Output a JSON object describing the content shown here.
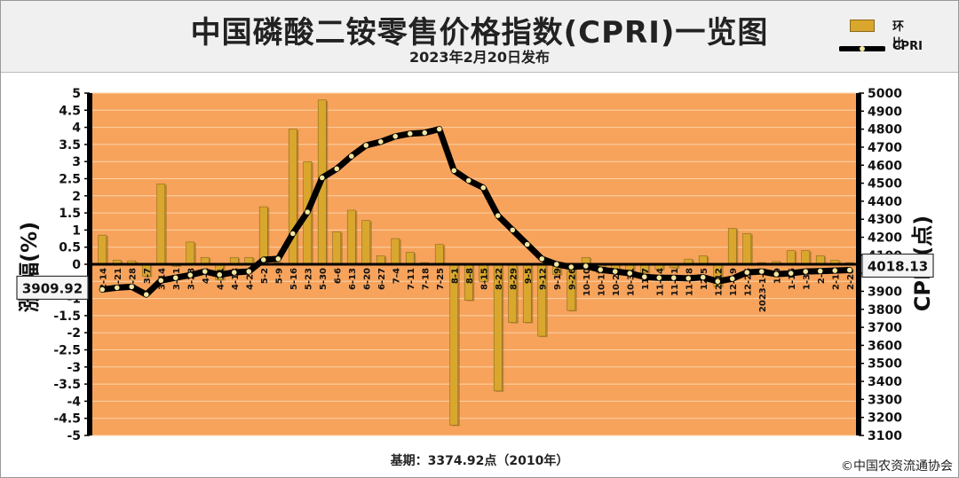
{
  "header": {
    "title": "中国磷酸二铵零售价格指数(CPRI)一览图",
    "subtitle": "2023年2月20日发布"
  },
  "legend": {
    "bar_label": "环比",
    "line_label": "CPRI"
  },
  "footer": {
    "base": "基期：3374.92点（2010年）",
    "copyright": "©中国农资流通协会"
  },
  "colors": {
    "bar": "#d9a62e",
    "bar_dark": "#8a6a1a",
    "line": "#000000",
    "grid_bg": "#f7a35c",
    "grid_line": "#fbd3a8"
  },
  "chart_data": {
    "type": "bar",
    "x": [
      "2-14",
      "2-21",
      "2-28",
      "3-7",
      "3-14",
      "3-21",
      "3-28",
      "4-4",
      "4-11",
      "4-18",
      "4-25",
      "5-2",
      "5-9",
      "5-16",
      "5-23",
      "5-30",
      "6-6",
      "6-13",
      "6-20",
      "6-27",
      "7-4",
      "7-11",
      "7-18",
      "7-25",
      "8-1",
      "8-8",
      "8-15",
      "8-22",
      "8-29",
      "9-5",
      "9-12",
      "9-19",
      "9-26",
      "10-10",
      "10-17",
      "10-24",
      "10-31",
      "11-7",
      "11-14",
      "11-21",
      "11-28",
      "12-5",
      "12-12",
      "12-19",
      "12-26",
      "2023-1-2",
      "1-9",
      "1-16",
      "1-30",
      "2-6",
      "2-13",
      "2-20"
    ],
    "series": [
      {
        "name": "环比",
        "axis": "left",
        "values": [
          0.85,
          0.12,
          0.1,
          -0.35,
          2.35,
          -0.05,
          0.65,
          0.2,
          -0.45,
          0.2,
          0.2,
          1.68,
          0.05,
          3.95,
          3.0,
          4.8,
          0.95,
          1.58,
          1.28,
          0.25,
          0.75,
          0.35,
          0.05,
          0.58,
          -4.7,
          -1.05,
          -0.5,
          -3.7,
          -1.7,
          -1.7,
          -2.1,
          -0.3,
          -1.35,
          0.2,
          -0.25,
          -0.15,
          -0.3,
          -0.25,
          -0.15,
          -0.1,
          0.15,
          0.25,
          -0.65,
          1.05,
          0.9,
          0.05,
          0.08,
          0.4,
          0.4,
          0.25,
          0.12,
          0.05
        ]
      },
      {
        "name": "CPRI",
        "axis": "right",
        "values": [
          3910,
          3920,
          3925,
          3882,
          3960,
          3975,
          3990,
          4010,
          3992,
          4005,
          4010,
          4075,
          4080,
          4220,
          4340,
          4530,
          4580,
          4650,
          4710,
          4730,
          4760,
          4775,
          4780,
          4800,
          4570,
          4515,
          4475,
          4320,
          4240,
          4160,
          4080,
          4050,
          4035,
          4040,
          4020,
          4010,
          4000,
          3980,
          3975,
          3975,
          3972,
          3978,
          3955,
          3970,
          4005,
          4010,
          3995,
          4000,
          4010,
          4012,
          4015,
          4018
        ]
      }
    ],
    "ylabel_left": "涨 幅(%)",
    "ylabel_right": "CPRI(点)",
    "ylim_left": [
      -5,
      5
    ],
    "ylim_right": [
      3100,
      5000
    ],
    "yticks_left": [
      "5",
      "4.5",
      "4",
      "3.5",
      "3",
      "2.5",
      "2",
      "1.5",
      "1",
      "0.5",
      "0",
      "-0.5",
      "-1",
      "-1.5",
      "-2",
      "-2.5",
      "-3",
      "-3.5",
      "-4",
      "-4.5",
      "-5"
    ],
    "yticks_right": [
      "5000",
      "4900",
      "4800",
      "4700",
      "4600",
      "4500",
      "4400",
      "4300",
      "4200",
      "4100",
      "4000",
      "3900",
      "3800",
      "3700",
      "3600",
      "3500",
      "3400",
      "3300",
      "3200",
      "3100"
    ],
    "callout_left": "3909.92",
    "callout_right": "4018.13"
  }
}
